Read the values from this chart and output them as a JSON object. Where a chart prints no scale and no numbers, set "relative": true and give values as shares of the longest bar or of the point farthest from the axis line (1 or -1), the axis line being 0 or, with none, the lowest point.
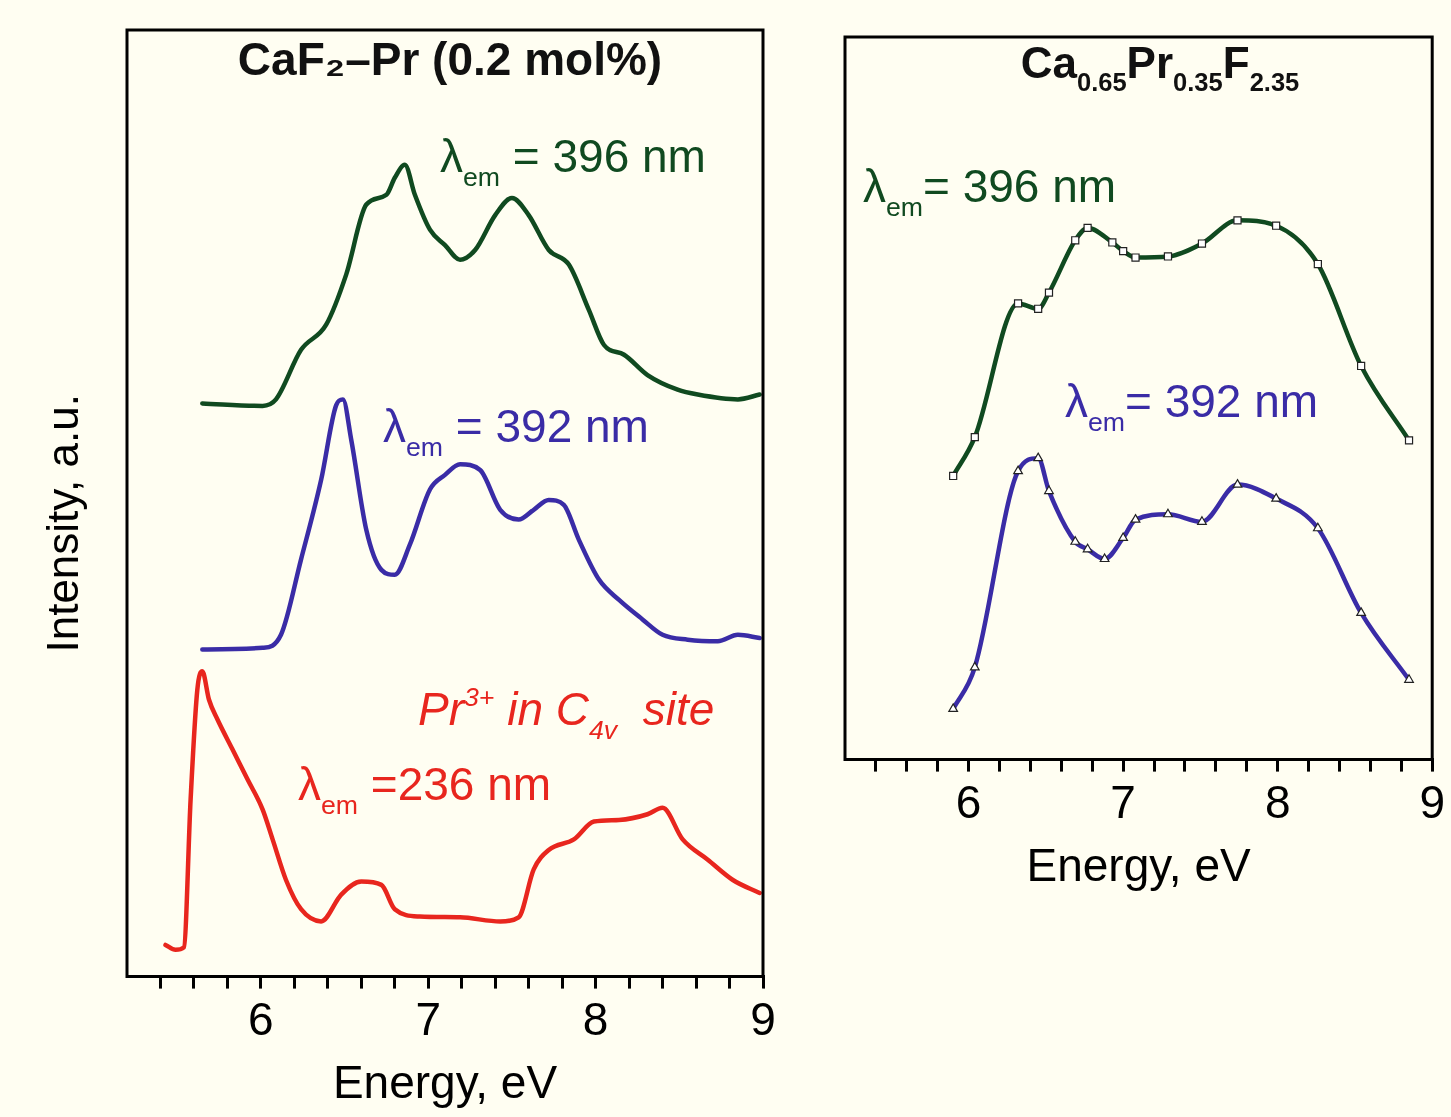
{
  "chart_data": [
    {
      "type": "line",
      "title": "CaF₂–Pr (0.2 mol%)",
      "xlabel": "Energy, eV",
      "ylabel": "Intensity, a.u.",
      "relative": true,
      "grid": false,
      "legend": false,
      "marker": "none",
      "line_style": "solid",
      "xlim": [
        5.2,
        9
      ],
      "xticks": [
        {
          "value": 5.4,
          "label": null
        },
        {
          "value": 5.6,
          "label": null
        },
        {
          "value": 5.8,
          "label": null
        },
        6,
        {
          "value": 6.2,
          "label": null
        },
        {
          "value": 6.4,
          "label": null
        },
        {
          "value": 6.6,
          "label": null
        },
        {
          "value": 6.8,
          "label": null
        },
        7,
        {
          "value": 7.2,
          "label": null
        },
        {
          "value": 7.4,
          "label": null
        },
        {
          "value": 7.6,
          "label": null
        },
        {
          "value": 7.8,
          "label": null
        },
        8,
        {
          "value": 8.2,
          "label": null
        },
        {
          "value": 8.4,
          "label": null
        },
        {
          "value": 8.6,
          "label": null
        },
        {
          "value": 8.8,
          "label": null
        },
        9
      ],
      "annotations": [
        "Pr$^{3+}$ in C$_{4v}$  site"
      ],
      "series": [
        {
          "name": "λ$_{em}$ = 396 nm",
          "color": "#104a20",
          "x": [
            5.65,
            6.01,
            6.09,
            6.24,
            6.39,
            6.51,
            6.63,
            6.75,
            6.8,
            6.86,
            6.92,
            7.01,
            7.1,
            7.19,
            7.28,
            7.4,
            7.5,
            7.6,
            7.72,
            7.84,
            7.96,
            8.05,
            8.17,
            8.31,
            8.49,
            8.61,
            8.85,
            8.98
          ],
          "values": [
            0.706,
            0.703,
            0.711,
            0.772,
            0.803,
            0.865,
            0.951,
            0.963,
            0.984,
            1.0,
            0.963,
            0.92,
            0.901,
            0.883,
            0.895,
            0.938,
            0.959,
            0.938,
            0.895,
            0.877,
            0.821,
            0.778,
            0.766,
            0.741,
            0.723,
            0.717,
            0.711,
            0.717
          ]
        },
        {
          "name": "λ$_{em}$ = 392 nm",
          "color": "#3a2ca6",
          "x": [
            5.65,
            6.01,
            6.12,
            6.24,
            6.36,
            6.45,
            6.49,
            6.54,
            6.63,
            6.72,
            6.8,
            6.89,
            7.01,
            7.1,
            7.19,
            7.31,
            7.43,
            7.54,
            7.63,
            7.72,
            7.81,
            7.9,
            8.02,
            8.14,
            8.28,
            8.4,
            8.55,
            8.73,
            8.85,
            8.98
          ],
          "values": [
            0.403,
            0.405,
            0.421,
            0.514,
            0.612,
            0.704,
            0.711,
            0.661,
            0.55,
            0.501,
            0.495,
            0.532,
            0.6,
            0.618,
            0.631,
            0.624,
            0.575,
            0.563,
            0.575,
            0.587,
            0.581,
            0.538,
            0.489,
            0.464,
            0.44,
            0.421,
            0.415,
            0.413,
            0.421,
            0.417
          ]
        },
        {
          "name": "λ$_{em}$ =236 nm",
          "color": "#e8261e",
          "x": [
            5.43,
            5.49,
            5.54,
            5.58,
            5.62,
            5.65,
            5.69,
            5.74,
            5.83,
            5.92,
            6.01,
            6.07,
            6.15,
            6.24,
            6.36,
            6.48,
            6.6,
            6.72,
            6.8,
            6.95,
            7.19,
            7.43,
            7.54,
            7.63,
            7.72,
            7.87,
            7.99,
            8.14,
            8.31,
            8.4,
            8.52,
            8.67,
            8.82,
            8.98
          ],
          "values": [
            0.039,
            0.033,
            0.036,
            0.218,
            0.353,
            0.376,
            0.341,
            0.317,
            0.28,
            0.243,
            0.206,
            0.169,
            0.119,
            0.083,
            0.068,
            0.101,
            0.117,
            0.113,
            0.083,
            0.074,
            0.073,
            0.068,
            0.073,
            0.132,
            0.156,
            0.169,
            0.191,
            0.193,
            0.2,
            0.208,
            0.169,
            0.144,
            0.119,
            0.103
          ]
        }
      ]
    },
    {
      "type": "line",
      "title": "Ca$_{0.65}$Pr$_{0.35}$F$_{2.35}$",
      "xlabel": "Energy, eV",
      "relative": true,
      "grid": false,
      "legend": false,
      "line_style": "solid",
      "xlim": [
        5.2,
        9
      ],
      "xticks": [
        {
          "value": 5.4,
          "label": null
        },
        {
          "value": 5.6,
          "label": null
        },
        {
          "value": 5.8,
          "label": null
        },
        6,
        {
          "value": 6.2,
          "label": null
        },
        {
          "value": 6.4,
          "label": null
        },
        {
          "value": 6.6,
          "label": null
        },
        {
          "value": 6.8,
          "label": null
        },
        7,
        {
          "value": 7.2,
          "label": null
        },
        {
          "value": 7.4,
          "label": null
        },
        {
          "value": 7.6,
          "label": null
        },
        {
          "value": 7.8,
          "label": null
        },
        8,
        {
          "value": 8.2,
          "label": null
        },
        {
          "value": 8.4,
          "label": null
        },
        {
          "value": 8.6,
          "label": null
        },
        {
          "value": 8.8,
          "label": null
        },
        9
      ],
      "series": [
        {
          "name": "λ$_{em}$= 396 nm",
          "color": "#104a20",
          "marker": "square",
          "x": [
            5.9,
            6.04,
            6.32,
            6.45,
            6.52,
            6.69,
            6.77,
            6.93,
            7.0,
            7.08,
            7.29,
            7.51,
            7.74,
            7.99,
            8.26,
            8.54,
            8.85
          ],
          "values": [
            0.526,
            0.598,
            0.846,
            0.836,
            0.866,
            0.963,
            0.986,
            0.959,
            0.943,
            0.931,
            0.933,
            0.957,
            1.0,
            0.99,
            0.919,
            0.73,
            0.592
          ]
        },
        {
          "name": "λ$_{em}$= 392 nm",
          "color": "#3a2ca6",
          "marker": "triangle",
          "x": [
            5.9,
            6.04,
            6.32,
            6.45,
            6.52,
            6.69,
            6.77,
            6.88,
            7.0,
            7.08,
            7.29,
            7.51,
            7.74,
            7.99,
            8.26,
            8.54,
            8.85
          ],
          "values": [
            0.094,
            0.171,
            0.535,
            0.559,
            0.498,
            0.404,
            0.39,
            0.372,
            0.411,
            0.445,
            0.455,
            0.441,
            0.51,
            0.484,
            0.429,
            0.272,
            0.148
          ]
        }
      ]
    }
  ]
}
